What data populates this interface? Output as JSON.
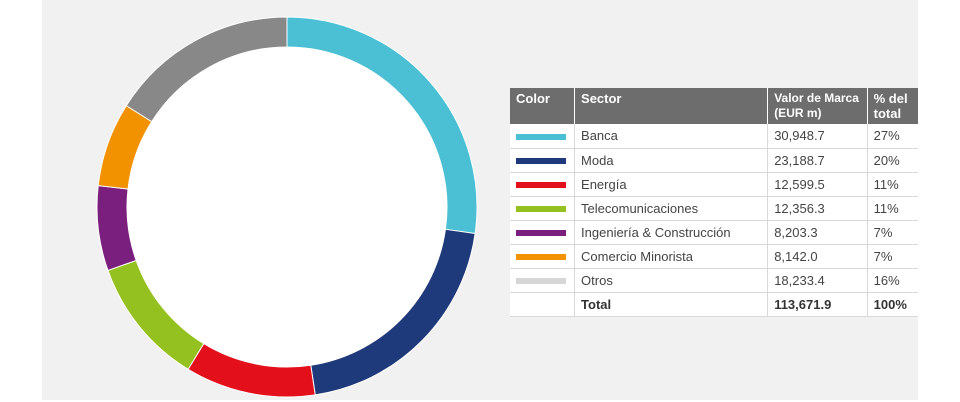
{
  "chart_data": {
    "type": "pie",
    "variant": "donut",
    "header": {
      "color": "Color",
      "sector": "Sector",
      "value_line1": "Valor de Marca",
      "value_line2": "(EUR m)",
      "pct_line1": "% del",
      "pct_line2": "total"
    },
    "slices": [
      {
        "label": "Banca",
        "value": 30948.7,
        "value_text": "30,948.7",
        "pct": "27%",
        "color": "#4bbfd4"
      },
      {
        "label": "Moda",
        "value": 23188.7,
        "value_text": "23,188.7",
        "pct": "20%",
        "color": "#1f3a7a"
      },
      {
        "label": "Energía",
        "value": 12599.5,
        "value_text": "12,599.5",
        "pct": "11%",
        "color": "#e3101b"
      },
      {
        "label": "Telecomunicaciones",
        "value": 12356.3,
        "value_text": "12,356.3",
        "pct": "11%",
        "color": "#94c11f"
      },
      {
        "label": "Ingeniería & Construcción",
        "value": 8203.3,
        "value_text": "8,203.3",
        "pct": "7%",
        "color": "#7b1f7e"
      },
      {
        "label": "Comercio Minorista",
        "value": 8142.0,
        "value_text": "8,142.0",
        "pct": "7%",
        "color": "#f39200"
      },
      {
        "label": "Otros",
        "value": 18233.4,
        "value_text": "18,233.4",
        "pct": "16%",
        "color": "#888888"
      }
    ],
    "total": {
      "label": "Total",
      "value_text": "113,671.9",
      "pct": "100%"
    },
    "legend_placement": "right",
    "legend_swatch_overrides": {
      "Otros": "#d6d6d6"
    }
  }
}
